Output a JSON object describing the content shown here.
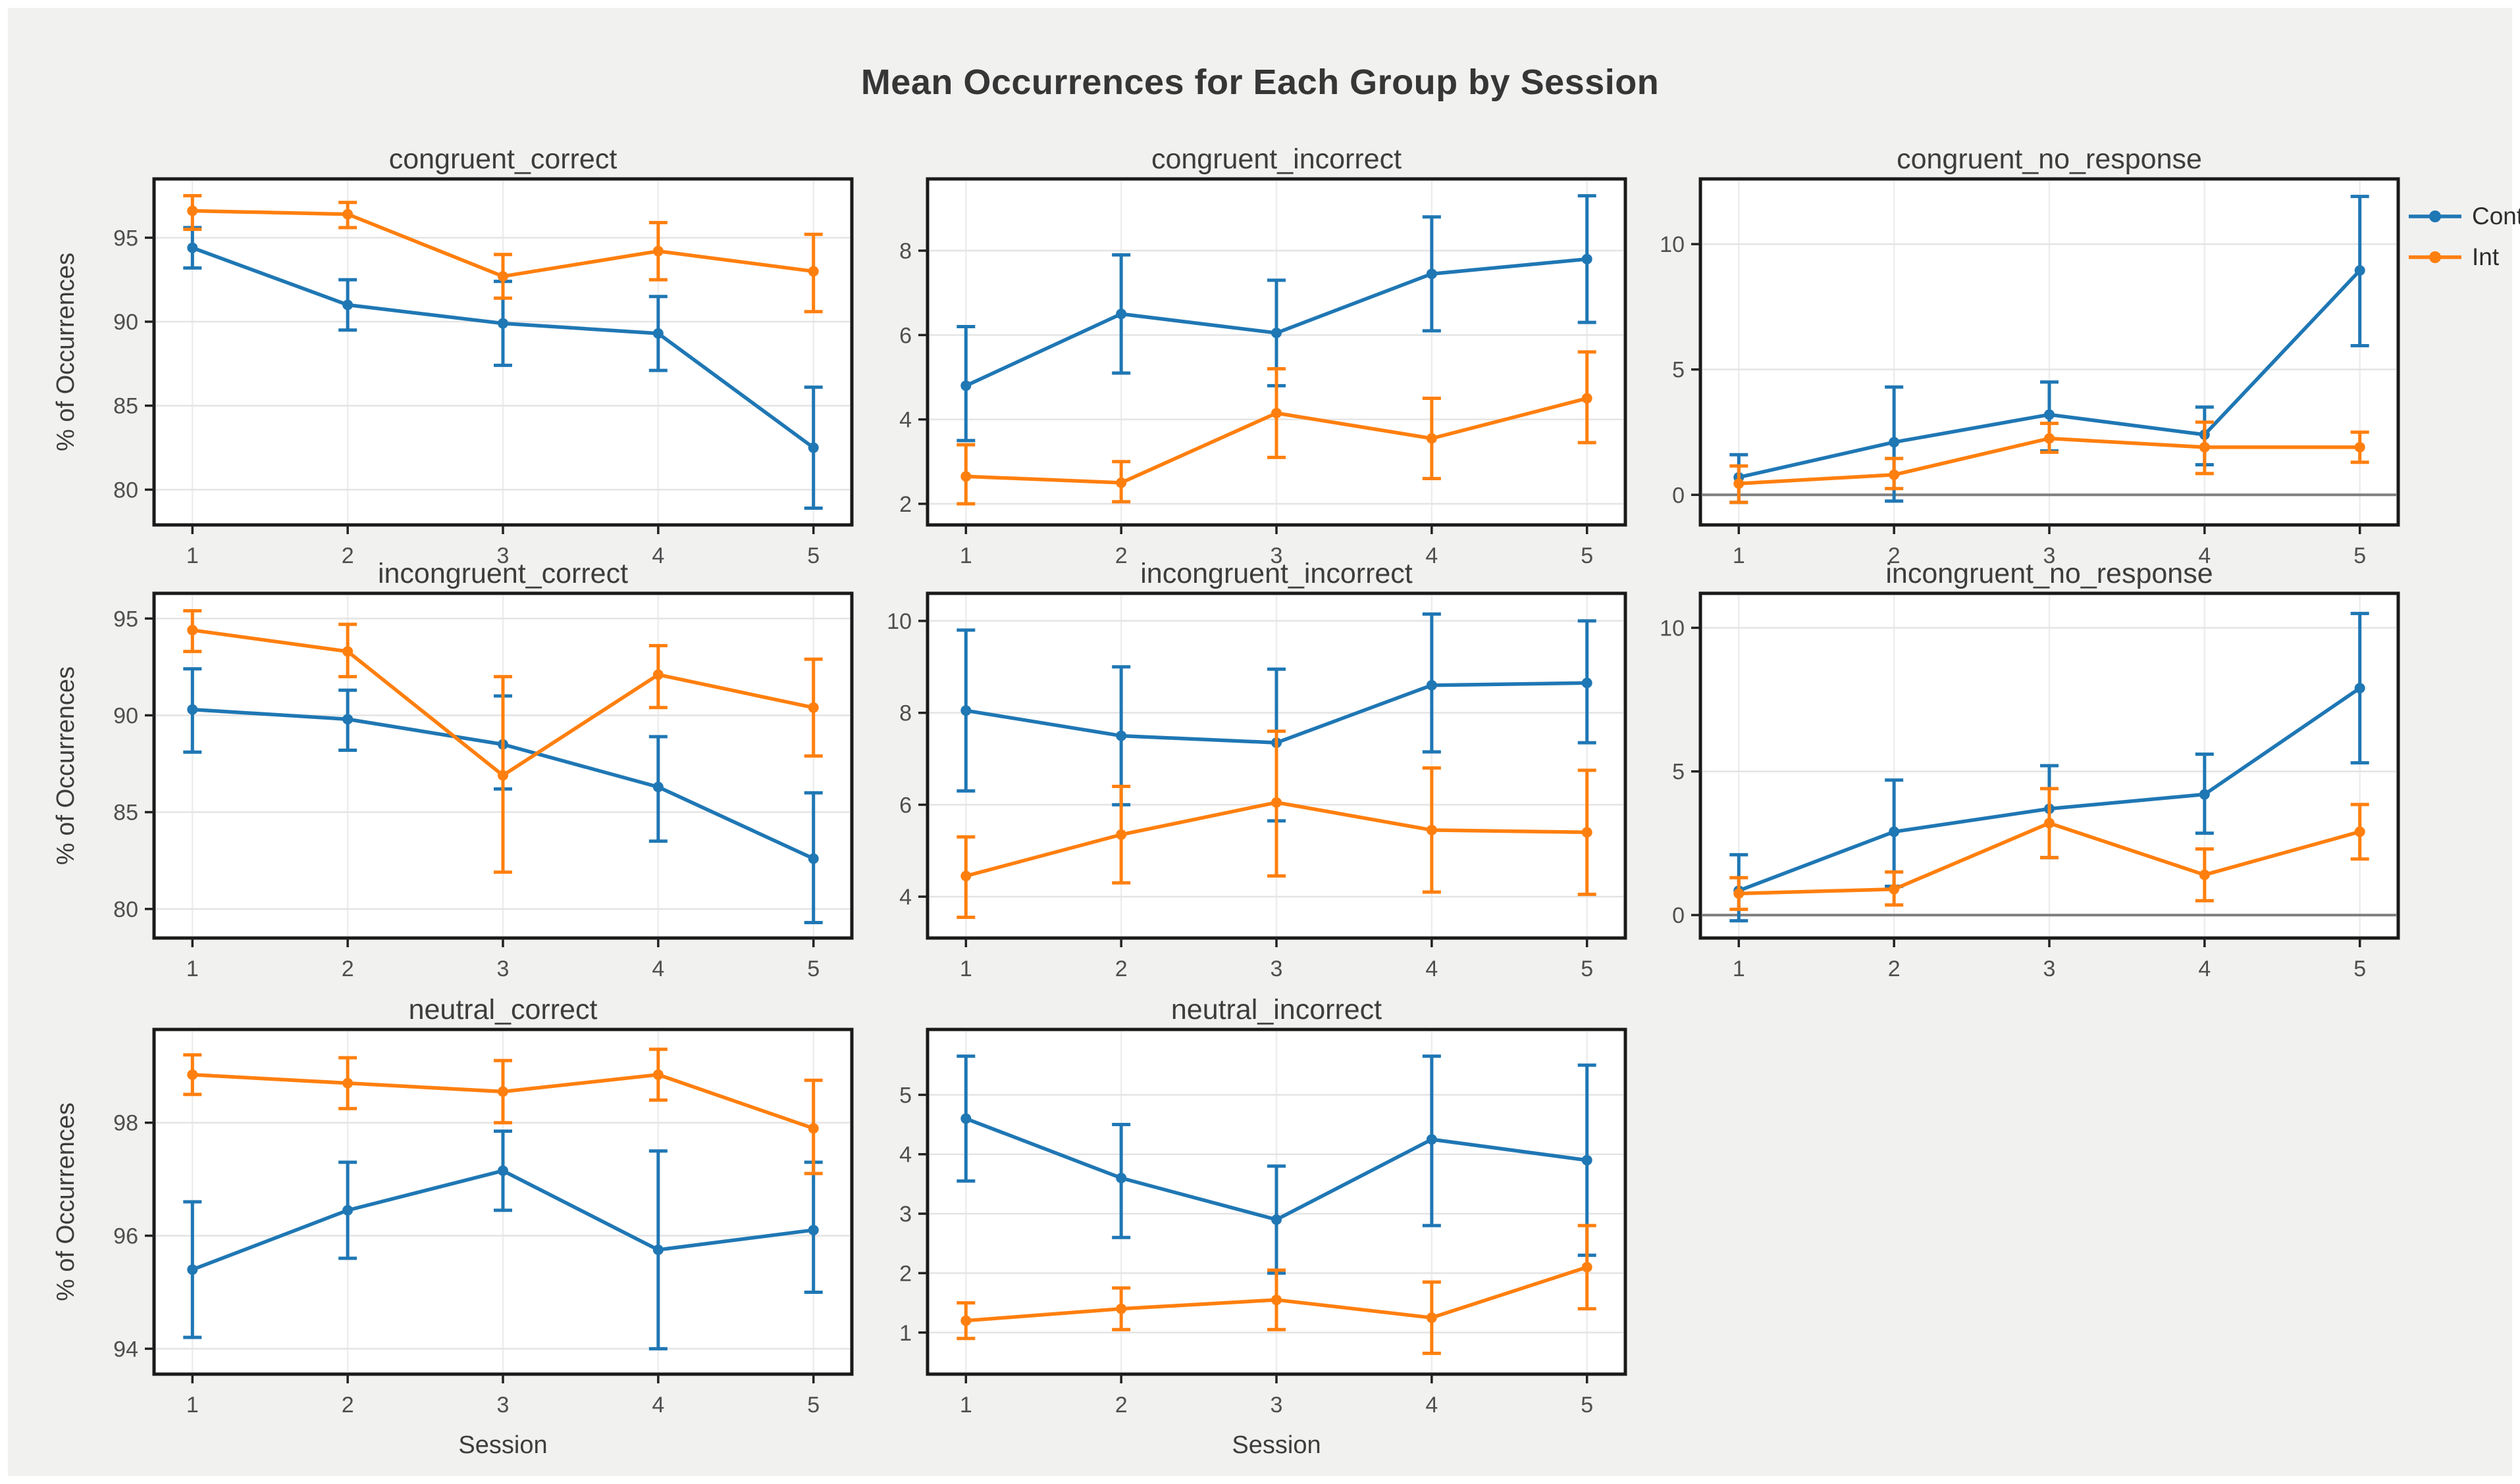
{
  "page": {
    "title": "Mean Occurrences for Each Group by Session",
    "background_color": "#f1f1f0"
  },
  "legend": {
    "items": [
      {
        "label": "Cont",
        "color": "#1f77b4"
      },
      {
        "label": "Int",
        "color": "#ff7f0e"
      }
    ]
  },
  "axes": {
    "x_label": "Session",
    "y_label": "% of Occurrences",
    "x_ticks": [
      "1",
      "2",
      "3",
      "4",
      "5"
    ]
  },
  "colors": {
    "cont_blue": "#1f77b4",
    "int_orange": "#ff7f0e",
    "zero_line_gray": "#7f7f7f",
    "panel_border": "#1a1a1a",
    "grid_line": "#e4e4e4",
    "tick_text": "#4f4f4f",
    "title_text": "#3d3d3d"
  },
  "chart_data": [
    {
      "type": "line",
      "title": "congruent_correct",
      "row": 0,
      "col": 0,
      "x": [
        1,
        2,
        3,
        4,
        5
      ],
      "y_ticks": [
        80,
        85,
        90,
        95
      ],
      "ylim": [
        77.9,
        98.5
      ],
      "zero_line": false,
      "show_ylabel": true,
      "show_xlabel": false,
      "series": [
        {
          "name": "Cont",
          "color": "#1f77b4",
          "values": [
            94.4,
            91.0,
            89.9,
            89.3,
            82.5
          ],
          "err_low": [
            93.2,
            89.5,
            87.4,
            87.1,
            78.9
          ],
          "err_high": [
            95.6,
            92.5,
            92.4,
            91.5,
            86.1
          ]
        },
        {
          "name": "Int",
          "color": "#ff7f0e",
          "values": [
            96.6,
            96.4,
            92.7,
            94.2,
            93.0
          ],
          "err_low": [
            95.5,
            95.6,
            91.4,
            92.5,
            90.6
          ],
          "err_high": [
            97.5,
            97.1,
            94.0,
            95.9,
            95.2
          ]
        }
      ]
    },
    {
      "type": "line",
      "title": "congruent_incorrect",
      "row": 0,
      "col": 1,
      "x": [
        1,
        2,
        3,
        4,
        5
      ],
      "y_ticks": [
        2,
        4,
        6,
        8
      ],
      "ylim": [
        1.5,
        9.7
      ],
      "zero_line": false,
      "show_ylabel": false,
      "show_xlabel": false,
      "series": [
        {
          "name": "Cont",
          "color": "#1f77b4",
          "values": [
            4.8,
            6.5,
            6.05,
            7.45,
            7.8
          ],
          "err_low": [
            3.5,
            5.1,
            4.8,
            6.1,
            6.3
          ],
          "err_high": [
            6.2,
            7.9,
            7.3,
            8.8,
            9.3
          ]
        },
        {
          "name": "Int",
          "color": "#ff7f0e",
          "values": [
            2.65,
            2.5,
            4.15,
            3.55,
            4.5
          ],
          "err_low": [
            2.0,
            2.05,
            3.1,
            2.6,
            3.45
          ],
          "err_high": [
            3.4,
            3.0,
            5.2,
            4.5,
            5.6
          ]
        }
      ]
    },
    {
      "type": "line",
      "title": "congruent_no_response",
      "row": 0,
      "col": 2,
      "x": [
        1,
        2,
        3,
        4,
        5
      ],
      "y_ticks": [
        0,
        5,
        10
      ],
      "ylim": [
        -1.2,
        12.6
      ],
      "zero_line": true,
      "show_ylabel": false,
      "show_xlabel": false,
      "series": [
        {
          "name": "Cont",
          "color": "#1f77b4",
          "values": [
            0.7,
            2.1,
            3.2,
            2.4,
            8.95
          ],
          "err_low": [
            -0.3,
            -0.25,
            1.75,
            1.2,
            5.95
          ],
          "err_high": [
            1.6,
            4.3,
            4.5,
            3.5,
            11.9
          ]
        },
        {
          "name": "Int",
          "color": "#ff7f0e",
          "values": [
            0.45,
            0.8,
            2.25,
            1.9,
            1.9
          ],
          "err_low": [
            -0.3,
            0.25,
            1.7,
            0.85,
            1.3
          ],
          "err_high": [
            1.15,
            1.45,
            2.85,
            2.9,
            2.5
          ]
        }
      ]
    },
    {
      "type": "line",
      "title": "incongruent_correct",
      "row": 1,
      "col": 0,
      "x": [
        1,
        2,
        3,
        4,
        5
      ],
      "y_ticks": [
        80,
        85,
        90,
        95
      ],
      "ylim": [
        78.5,
        96.3
      ],
      "zero_line": false,
      "show_ylabel": true,
      "show_xlabel": false,
      "series": [
        {
          "name": "Cont",
          "color": "#1f77b4",
          "values": [
            90.3,
            89.8,
            88.5,
            86.3,
            82.6
          ],
          "err_low": [
            88.1,
            88.2,
            86.2,
            83.5,
            79.3
          ],
          "err_high": [
            92.4,
            91.3,
            91.0,
            88.9,
            86.0
          ]
        },
        {
          "name": "Int",
          "color": "#ff7f0e",
          "values": [
            94.4,
            93.3,
            86.9,
            92.1,
            90.4
          ],
          "err_low": [
            93.3,
            92.0,
            81.9,
            90.4,
            87.9
          ],
          "err_high": [
            95.4,
            94.7,
            92.0,
            93.6,
            92.9
          ]
        }
      ]
    },
    {
      "type": "line",
      "title": "incongruent_incorrect",
      "row": 1,
      "col": 1,
      "x": [
        1,
        2,
        3,
        4,
        5
      ],
      "y_ticks": [
        4,
        6,
        8,
        10
      ],
      "ylim": [
        3.1,
        10.6
      ],
      "zero_line": false,
      "show_ylabel": false,
      "show_xlabel": false,
      "series": [
        {
          "name": "Cont",
          "color": "#1f77b4",
          "values": [
            8.05,
            7.5,
            7.35,
            8.6,
            8.65
          ],
          "err_low": [
            6.3,
            6.0,
            5.65,
            7.15,
            7.35
          ],
          "err_high": [
            9.8,
            9.0,
            8.95,
            10.15,
            10.0
          ]
        },
        {
          "name": "Int",
          "color": "#ff7f0e",
          "values": [
            4.45,
            5.35,
            6.05,
            5.45,
            5.4
          ],
          "err_low": [
            3.55,
            4.3,
            4.45,
            4.1,
            4.05
          ],
          "err_high": [
            5.3,
            6.4,
            7.6,
            6.8,
            6.75
          ]
        }
      ]
    },
    {
      "type": "line",
      "title": "incongruent_no_response",
      "row": 1,
      "col": 2,
      "x": [
        1,
        2,
        3,
        4,
        5
      ],
      "y_ticks": [
        0,
        5,
        10
      ],
      "ylim": [
        -0.8,
        11.2
      ],
      "zero_line": true,
      "show_ylabel": false,
      "show_xlabel": false,
      "series": [
        {
          "name": "Cont",
          "color": "#1f77b4",
          "values": [
            0.85,
            2.9,
            3.7,
            4.2,
            7.9
          ],
          "err_low": [
            -0.2,
            1.0,
            2.0,
            2.85,
            5.3
          ],
          "err_high": [
            2.1,
            4.7,
            5.2,
            5.6,
            10.5
          ]
        },
        {
          "name": "Int",
          "color": "#ff7f0e",
          "values": [
            0.75,
            0.9,
            3.2,
            1.4,
            2.9
          ],
          "err_low": [
            0.2,
            0.35,
            2.0,
            0.5,
            1.95
          ],
          "err_high": [
            1.3,
            1.5,
            4.4,
            2.3,
            3.85
          ]
        }
      ]
    },
    {
      "type": "line",
      "title": "neutral_correct",
      "row": 2,
      "col": 0,
      "x": [
        1,
        2,
        3,
        4,
        5
      ],
      "y_ticks": [
        94,
        96,
        98
      ],
      "ylim": [
        93.55,
        99.65
      ],
      "zero_line": false,
      "show_ylabel": true,
      "show_xlabel": true,
      "series": [
        {
          "name": "Cont",
          "color": "#1f77b4",
          "values": [
            95.4,
            96.45,
            97.15,
            95.75,
            96.1
          ],
          "err_low": [
            94.2,
            95.6,
            96.45,
            94.0,
            95.0
          ],
          "err_high": [
            96.6,
            97.3,
            97.85,
            97.5,
            97.3
          ]
        },
        {
          "name": "Int",
          "color": "#ff7f0e",
          "values": [
            98.85,
            98.7,
            98.55,
            98.85,
            97.9
          ],
          "err_low": [
            98.5,
            98.25,
            98.0,
            98.4,
            97.1
          ],
          "err_high": [
            99.2,
            99.15,
            99.1,
            99.3,
            98.75
          ]
        }
      ]
    },
    {
      "type": "line",
      "title": "neutral_incorrect",
      "row": 2,
      "col": 1,
      "x": [
        1,
        2,
        3,
        4,
        5
      ],
      "y_ticks": [
        1,
        2,
        3,
        4,
        5
      ],
      "ylim": [
        0.3,
        6.1
      ],
      "zero_line": false,
      "show_ylabel": false,
      "show_xlabel": true,
      "series": [
        {
          "name": "Cont",
          "color": "#1f77b4",
          "values": [
            4.6,
            3.6,
            2.9,
            4.25,
            3.9
          ],
          "err_low": [
            3.55,
            2.6,
            2.0,
            2.8,
            2.3
          ],
          "err_high": [
            5.65,
            4.5,
            3.8,
            5.65,
            5.5
          ]
        },
        {
          "name": "Int",
          "color": "#ff7f0e",
          "values": [
            1.2,
            1.4,
            1.55,
            1.25,
            2.1
          ],
          "err_low": [
            0.9,
            1.05,
            1.05,
            0.65,
            1.4
          ],
          "err_high": [
            1.5,
            1.75,
            2.05,
            1.85,
            2.8
          ]
        }
      ]
    }
  ]
}
